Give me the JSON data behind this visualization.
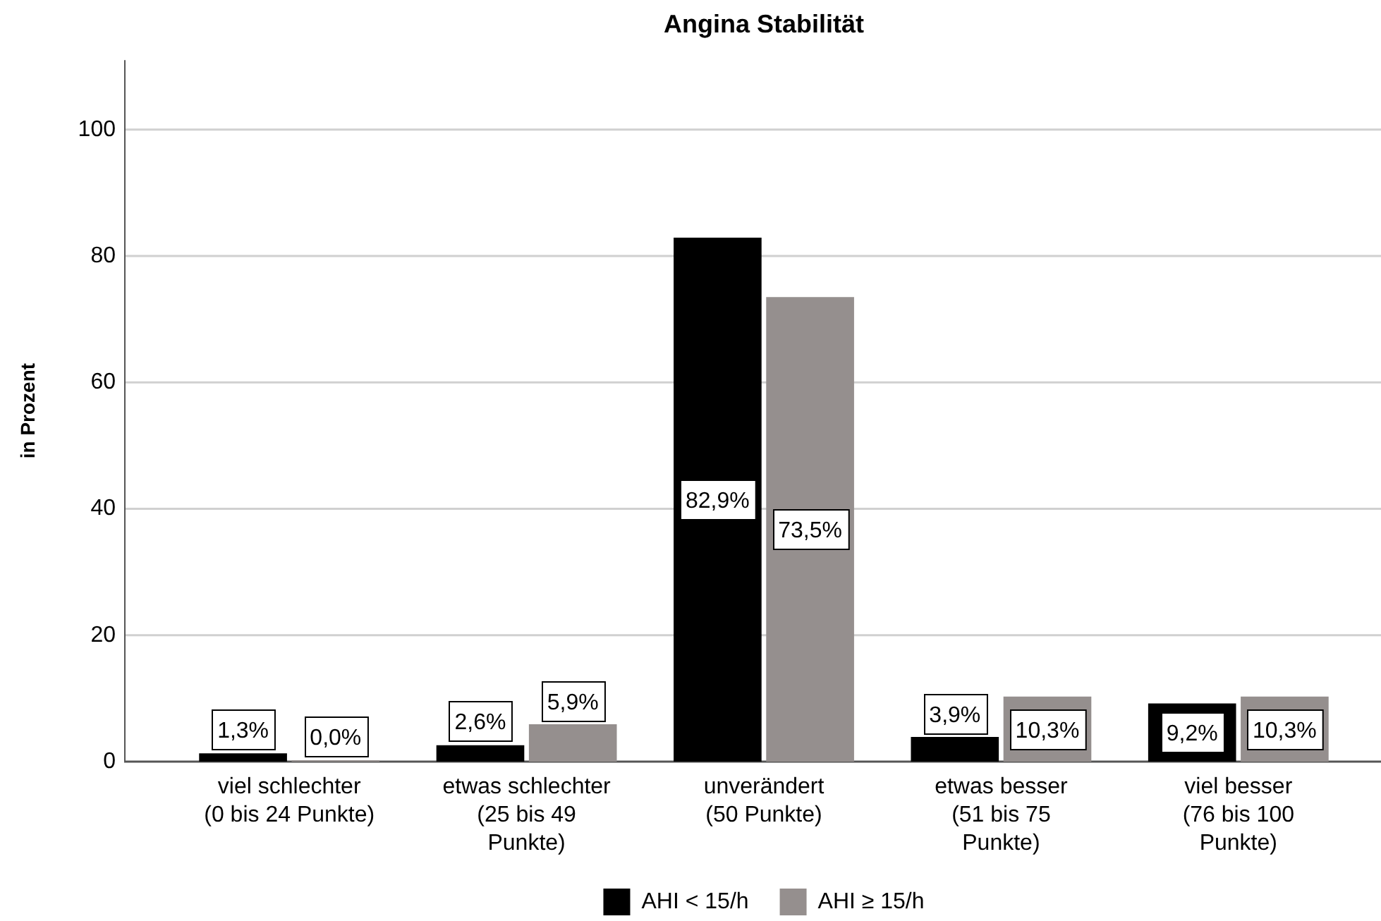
{
  "chart_data": {
    "type": "bar",
    "title": "Angina Stabilität",
    "ylabel": "in Prozent",
    "categories": [
      "viel schlechter\n(0 bis 24 Punkte)",
      "etwas schlechter\n(25 bis 49\nPunkte)",
      "unverändert\n(50 Punkte)",
      "etwas besser\n(51 bis 75\nPunkte)",
      "viel besser\n(76 bis 100\nPunkte)"
    ],
    "series": [
      {
        "name": "AHI < 15/h",
        "color": "#000000",
        "values": [
          1.3,
          2.6,
          82.9,
          3.9,
          9.2
        ],
        "value_labels": [
          "1,3%",
          "2,6%",
          "82,9%",
          "3,9%",
          "9,2%"
        ]
      },
      {
        "name": "AHI ≥ 15/h",
        "color": "#958f8e",
        "values": [
          0.0,
          5.9,
          73.5,
          10.3,
          10.3
        ],
        "value_labels": [
          "0,0%",
          "5,9%",
          "73,5%",
          "10,3%",
          "10,3%"
        ]
      }
    ],
    "ylim": [
      0,
      111
    ],
    "yticks": [
      0,
      20,
      40,
      60,
      80,
      100
    ],
    "grid": "y",
    "legend": "bottom"
  }
}
